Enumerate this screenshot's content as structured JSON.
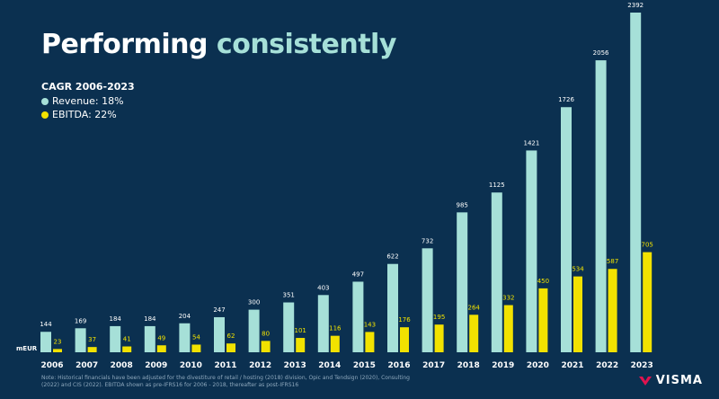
{
  "header": {
    "title_main": "Performing",
    "title_accent": "consistently"
  },
  "legend": {
    "title": "CAGR 2006-2023",
    "items": [
      {
        "label": "Revenue: 18%",
        "color": "#a6e0d8"
      },
      {
        "label": "EBITDA: 22%",
        "color": "#f2e200"
      }
    ]
  },
  "unit_label": "mEUR",
  "footnote": "Note: Historical financials have been adjusted for the divestiture of retail / hosting (2018) division, Opic and Tendsign (2020), Consulting (2022) and CIS (2022). EBITDA shown as pre-IFRS16 for 2006 - 2018, thereafter as post-IFRS16",
  "brand": {
    "name": "VISMA",
    "color": "#e0134f",
    "icon": "visma-logo-icon"
  },
  "chart_data": {
    "type": "bar",
    "categories": [
      "2006",
      "2007",
      "2008",
      "2009",
      "2010",
      "2011",
      "2012",
      "2013",
      "2014",
      "2015",
      "2016",
      "2017",
      "2018",
      "2019",
      "2020",
      "2021",
      "2022",
      "2023"
    ],
    "series": [
      {
        "name": "Revenue",
        "color": "#a6e0d8",
        "label_color": "#ffffff",
        "values": [
          144,
          169,
          184,
          184,
          204,
          247,
          300,
          351,
          403,
          497,
          622,
          732,
          985,
          1125,
          1421,
          1726,
          2056,
          2392
        ]
      },
      {
        "name": "EBITDA",
        "color": "#f2e200",
        "label_color": "#f2e200",
        "values": [
          23,
          37,
          41,
          49,
          54,
          62,
          80,
          101,
          116,
          143,
          176,
          195,
          264,
          332,
          450,
          534,
          587,
          705
        ]
      }
    ],
    "ylim": [
      0,
      2392
    ],
    "grid": false,
    "legend_position": "top-left"
  }
}
